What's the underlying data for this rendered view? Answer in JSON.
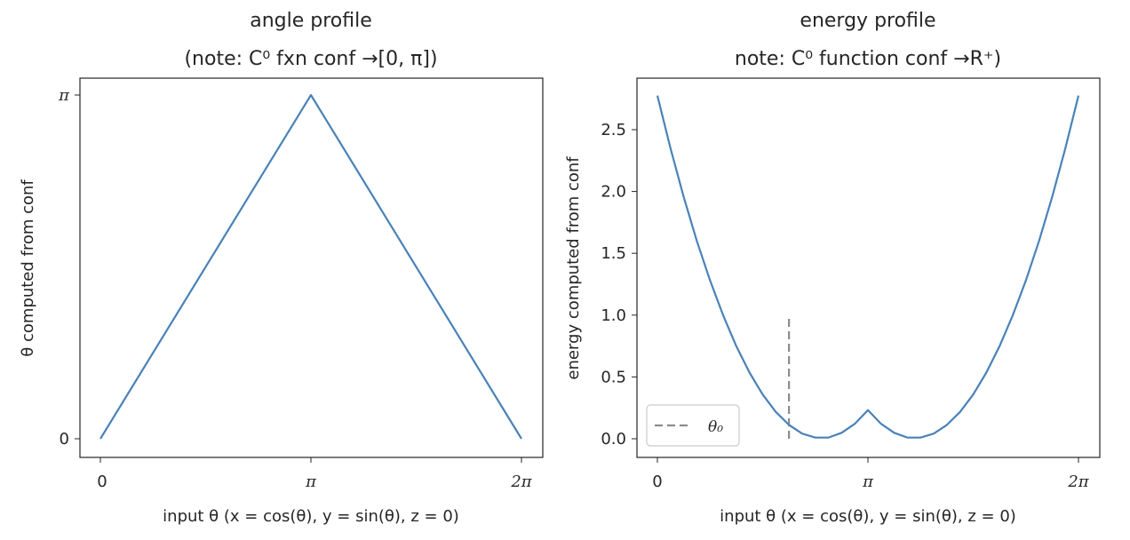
{
  "figure": {
    "background": "#ffffff",
    "line_color": "#4a82b8",
    "marker_color": "#8c8c8c"
  },
  "chart_data": [
    {
      "type": "line",
      "title": "angle profile",
      "subtitle": "(note: C⁰ fxn conf →[0, π])",
      "xlabel": "input θ (x = cos(θ), y = sin(θ), z = 0)",
      "ylabel": "θ computed from conf",
      "xlim": [
        0,
        6.2832
      ],
      "ylim": [
        0,
        3.1416
      ],
      "xticks": [
        0,
        3.1416,
        6.2832
      ],
      "xtick_labels": [
        "0",
        "π",
        "2π"
      ],
      "yticks": [
        0,
        3.1416
      ],
      "ytick_labels": [
        "0",
        "π"
      ],
      "grid": false,
      "series": [
        {
          "x": [
            0,
            3.1416,
            6.2832
          ],
          "y": [
            0,
            3.1416,
            0
          ]
        }
      ]
    },
    {
      "type": "line",
      "title": "energy profile",
      "subtitle": "note: C⁰ function conf →R⁺)",
      "xlabel": "input θ (x = cos(θ), y = sin(θ), z = 0)",
      "ylabel": "energy computed from conf",
      "xlim": [
        0,
        6.2832
      ],
      "ylim": [
        0,
        2.78
      ],
      "xticks": [
        0,
        3.1416,
        6.2832
      ],
      "xtick_labels": [
        "0",
        "π",
        "2π"
      ],
      "yticks": [
        0.0,
        0.5,
        1.0,
        1.5,
        2.0,
        2.5
      ],
      "ytick_labels": [
        "0.0",
        "0.5",
        "1.0",
        "1.5",
        "2.0",
        "2.5"
      ],
      "grid": false,
      "legend": {
        "location": "lower-left",
        "entries": [
          "θ₀"
        ]
      },
      "theta0": 1.9635,
      "theta0_line": {
        "ymin": 0,
        "ymax": 1.0,
        "style": "dashed"
      },
      "series": [
        {
          "x": [
            0,
            0.1963,
            0.3927,
            0.589,
            0.7854,
            0.9817,
            1.1781,
            1.3744,
            1.5708,
            1.7671,
            1.9635,
            2.1598,
            2.3562,
            2.5525,
            2.7489,
            2.9452,
            3.1416,
            3.3379,
            3.5343,
            3.7306,
            3.927,
            4.1233,
            4.3197,
            4.516,
            4.7124,
            4.9087,
            5.1051,
            5.3014,
            5.4978,
            5.6941,
            5.8905,
            6.0868,
            6.2832
          ],
          "y": [
            2.776,
            2.348,
            1.956,
            1.6,
            1.28,
            0.996,
            0.748,
            0.535,
            0.358,
            0.217,
            0.112,
            0.042,
            0.009,
            0.01,
            0.048,
            0.121,
            0.231,
            0.121,
            0.048,
            0.01,
            0.009,
            0.042,
            0.112,
            0.217,
            0.358,
            0.535,
            0.748,
            0.996,
            1.28,
            1.6,
            1.956,
            2.348,
            2.776
          ]
        }
      ]
    }
  ]
}
